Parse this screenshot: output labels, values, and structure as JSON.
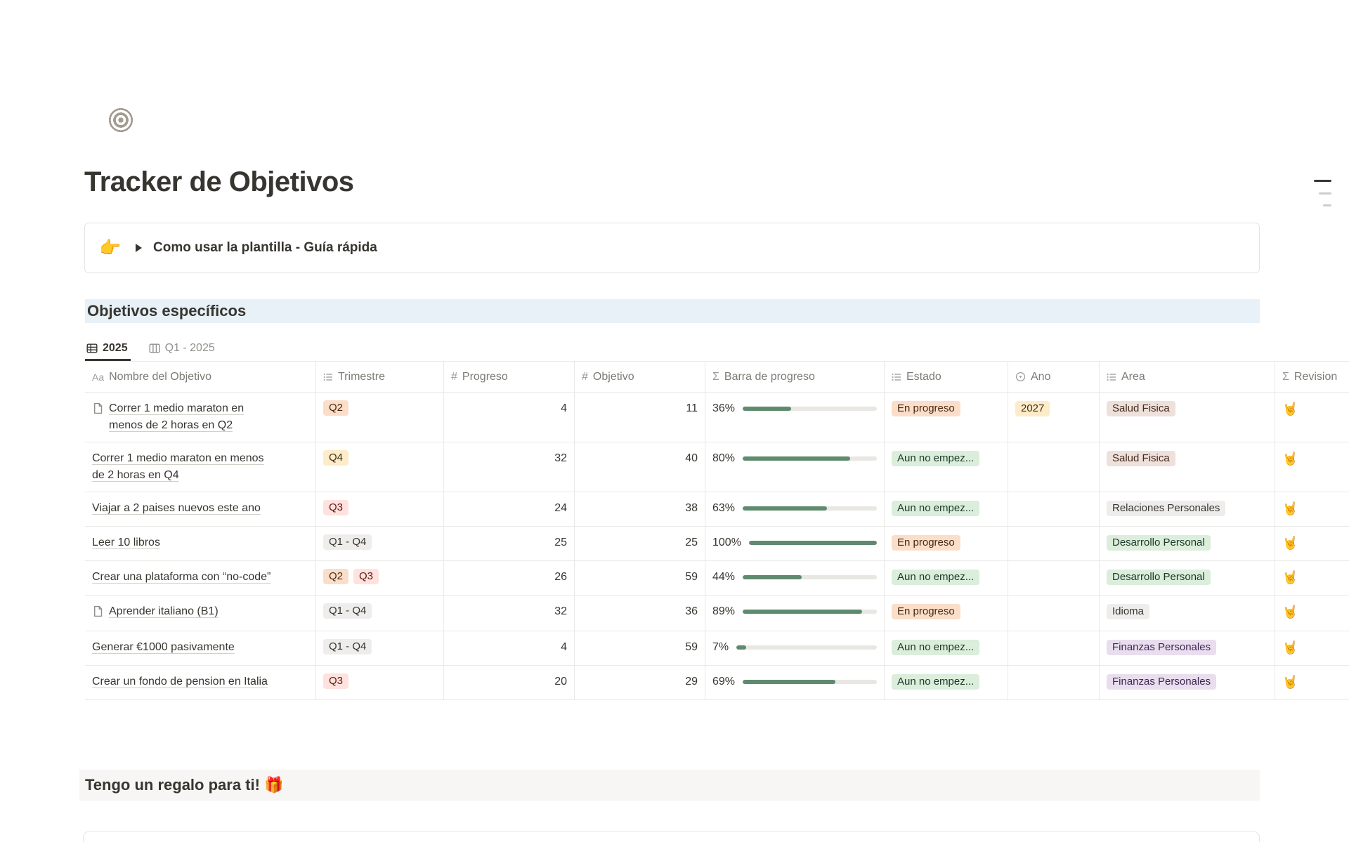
{
  "page": {
    "title": "Tracker de Objetivos"
  },
  "toc_indicator": {
    "dash_count": 3
  },
  "callout": {
    "emoji": "👉",
    "title": "Como usar la plantilla - Guía rápida"
  },
  "section": {
    "heading": "Objetivos específicos",
    "tabs": [
      {
        "label": "2025",
        "active": true
      },
      {
        "label": "Q1 - 2025",
        "active": false
      }
    ]
  },
  "table": {
    "columns": [
      {
        "key": "name",
        "label": "Nombre del Objetivo",
        "icon": "text-Aa-icon"
      },
      {
        "key": "trimestre",
        "label": "Trimestre",
        "icon": "list-icon"
      },
      {
        "key": "progreso",
        "label": "Progreso",
        "icon": "hash-icon"
      },
      {
        "key": "objetivo",
        "label": "Objetivo",
        "icon": "hash-icon"
      },
      {
        "key": "barra",
        "label": "Barra de progreso",
        "icon": "sigma-icon"
      },
      {
        "key": "estado",
        "label": "Estado",
        "icon": "list-icon"
      },
      {
        "key": "ano",
        "label": "Ano",
        "icon": "select-circle-icon"
      },
      {
        "key": "area",
        "label": "Area",
        "icon": "list-icon"
      },
      {
        "key": "revision",
        "label": "Revision",
        "icon": "sigma-icon"
      }
    ],
    "rows": [
      {
        "name": "Correr 1 medio maraton en menos de 2 horas en Q2",
        "has_page_icon": true,
        "trimestre": [
          {
            "label": "Q2",
            "color": "orange"
          }
        ],
        "progreso": "4",
        "objetivo": "11",
        "percent": "36%",
        "percent_value": 36,
        "estado": {
          "label": "En progreso",
          "color": "orange"
        },
        "ano": {
          "label": "2027",
          "color": "yellow"
        },
        "area": {
          "label": "Salud Fisica",
          "color": "brown"
        },
        "revision_emoji": "🤘"
      },
      {
        "name": "Correr 1 medio maraton en menos de 2 horas en Q4",
        "has_page_icon": false,
        "trimestre": [
          {
            "label": "Q4",
            "color": "yellow"
          }
        ],
        "progreso": "32",
        "objetivo": "40",
        "percent": "80%",
        "percent_value": 80,
        "estado": {
          "label": "Aun no empez...",
          "color": "green"
        },
        "ano": null,
        "area": {
          "label": "Salud Fisica",
          "color": "brown"
        },
        "revision_emoji": "🤘"
      },
      {
        "name": "Viajar a 2 paises nuevos este ano",
        "has_page_icon": false,
        "trimestre": [
          {
            "label": "Q3",
            "color": "red"
          }
        ],
        "progreso": "24",
        "objetivo": "38",
        "percent": "63%",
        "percent_value": 63,
        "estado": {
          "label": "Aun no empez...",
          "color": "green"
        },
        "ano": null,
        "area": {
          "label": "Relaciones Personales",
          "color": "gray"
        },
        "revision_emoji": "🤘"
      },
      {
        "name": "Leer 10 libros",
        "has_page_icon": false,
        "trimestre": [
          {
            "label": "Q1 - Q4",
            "color": "gray"
          }
        ],
        "progreso": "25",
        "objetivo": "25",
        "percent": "100%",
        "percent_value": 100,
        "estado": {
          "label": "En progreso",
          "color": "orange"
        },
        "ano": null,
        "area": {
          "label": "Desarrollo Personal",
          "color": "green"
        },
        "revision_emoji": "🤘"
      },
      {
        "name": "Crear una plataforma con “no-code”",
        "has_page_icon": false,
        "trimestre": [
          {
            "label": "Q2",
            "color": "orange"
          },
          {
            "label": "Q3",
            "color": "red"
          }
        ],
        "progreso": "26",
        "objetivo": "59",
        "percent": "44%",
        "percent_value": 44,
        "estado": {
          "label": "Aun no empez...",
          "color": "green"
        },
        "ano": null,
        "area": {
          "label": "Desarrollo Personal",
          "color": "green"
        },
        "revision_emoji": "🤘"
      },
      {
        "name": "Aprender italiano (B1)",
        "has_page_icon": true,
        "trimestre": [
          {
            "label": "Q1 - Q4",
            "color": "gray"
          }
        ],
        "progreso": "32",
        "objetivo": "36",
        "percent": "89%",
        "percent_value": 89,
        "estado": {
          "label": "En progreso",
          "color": "orange"
        },
        "ano": null,
        "area": {
          "label": "Idioma",
          "color": "gray"
        },
        "revision_emoji": "🤘"
      },
      {
        "name": "Generar €1000 pasivamente",
        "has_page_icon": false,
        "trimestre": [
          {
            "label": "Q1 - Q4",
            "color": "gray"
          }
        ],
        "progreso": "4",
        "objetivo": "59",
        "percent": "7%",
        "percent_value": 7,
        "estado": {
          "label": "Aun no empez...",
          "color": "green"
        },
        "ano": null,
        "area": {
          "label": "Finanzas Personales",
          "color": "purple"
        },
        "revision_emoji": "🤘"
      },
      {
        "name": "Crear un fondo de pension en Italia",
        "has_page_icon": false,
        "trimestre": [
          {
            "label": "Q3",
            "color": "red"
          }
        ],
        "progreso": "20",
        "objetivo": "29",
        "percent": "69%",
        "percent_value": 69,
        "estado": {
          "label": "Aun no empez...",
          "color": "green"
        },
        "ano": null,
        "area": {
          "label": "Finanzas Personales",
          "color": "purple"
        },
        "revision_emoji": "🤘"
      }
    ]
  },
  "footer": {
    "heading": "Tengo un regalo para ti! 🎁"
  },
  "icons": {
    "page_icon": "bullseye-target",
    "tab_active": "table-view-icon",
    "tab_inactive": "board-view-icon",
    "goal_row": "page-document-icon",
    "callout_toggle": "triangle-right-icon",
    "top_right": "table-of-contents-dashes"
  },
  "colors": {
    "text_main": "#37352f",
    "text_gray": "#7d7b76",
    "heading_bg": "#e8f1f8",
    "progress_fill": "#5f8a6e",
    "progress_track": "#e8e7e4",
    "tags": {
      "orange": {
        "bg": "#fadec9",
        "text": "#49290e"
      },
      "yellow": {
        "bg": "#fdecc8",
        "text": "#402c1b"
      },
      "red": {
        "bg": "#ffe2dd",
        "text": "#5d1715"
      },
      "gray": {
        "bg": "#eeedeb",
        "text": "#373530"
      },
      "green": {
        "bg": "#dbeddb",
        "text": "#1c3829"
      },
      "purple": {
        "bg": "#e8deee",
        "text": "#412454"
      },
      "brown": {
        "bg": "#eee0da",
        "text": "#442a1e"
      }
    }
  }
}
